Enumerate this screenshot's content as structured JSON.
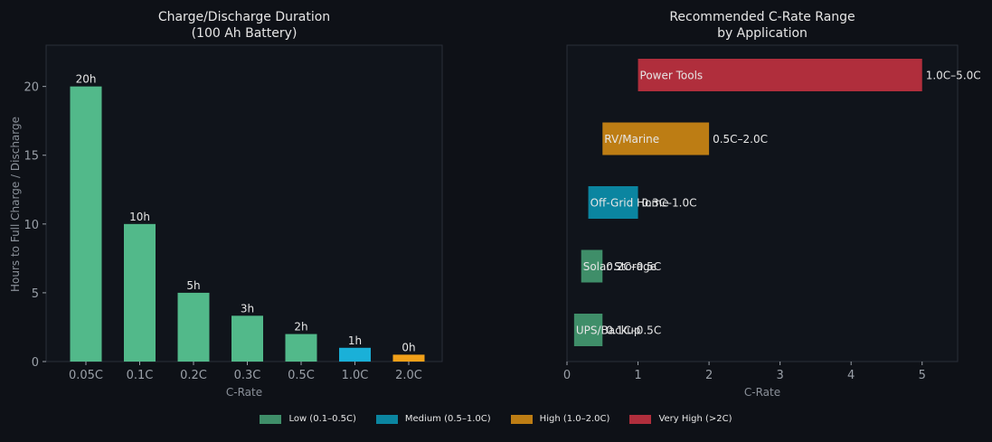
{
  "chart_data": [
    {
      "type": "bar",
      "title": "Charge/Discharge Duration\n(100 Ah Battery)",
      "xlabel": "C-Rate",
      "ylabel": "Hours to Full Charge / Discharge",
      "categories": [
        "0.05C",
        "0.1C",
        "0.2C",
        "0.3C",
        "0.5C",
        "1.0C",
        "2.0C"
      ],
      "values": [
        20,
        10,
        5,
        3.33,
        2,
        1,
        0.5
      ],
      "data_labels": [
        "20h",
        "10h",
        "5h",
        "3h",
        "2h",
        "1h",
        "0h"
      ],
      "bar_colors": [
        "#52b98a",
        "#52b98a",
        "#52b98a",
        "#52b98a",
        "#52b98a",
        "#1ab0d8",
        "#f1a019"
      ],
      "ylim": [
        0,
        23
      ],
      "yticks": [
        0,
        5,
        10,
        15,
        20
      ],
      "grid": false
    },
    {
      "type": "bar",
      "orientation": "horizontal",
      "title": "Recommended C-Rate Range\nby Application",
      "xlabel": "C-Rate",
      "xlim": [
        0,
        5.5
      ],
      "xticks": [
        0,
        1,
        2,
        3,
        4,
        5
      ],
      "categories": [
        "UPS/Backup",
        "Solar Storage",
        "Off-Grid Home",
        "RV/Marine",
        "Power Tools"
      ],
      "ranges": [
        [
          0.1,
          0.5
        ],
        [
          0.2,
          0.5
        ],
        [
          0.3,
          1.0
        ],
        [
          0.5,
          2.0
        ],
        [
          1.0,
          5.0
        ]
      ],
      "range_labels": [
        "0.1C–0.5C",
        "0.2C–0.5C",
        "0.3C–1.0C",
        "0.5C–2.0C",
        "1.0C–5.0C"
      ],
      "colors": [
        "#3f8e69",
        "#3f8e69",
        "#0b85a0",
        "#bd7d14",
        "#b02e3c"
      ],
      "grid": false
    }
  ],
  "legend": {
    "placement": "bottom-center",
    "items": [
      {
        "label": "Low (0.1–0.5C)",
        "color": "#3f8e69"
      },
      {
        "label": "Medium (0.5–1.0C)",
        "color": "#0b85a0"
      },
      {
        "label": "High (1.0–2.0C)",
        "color": "#bd7d14"
      },
      {
        "label": "Very High (>2C)",
        "color": "#b02e3c"
      }
    ]
  },
  "colors": {
    "background": "#0e1117",
    "axes_face": "#10141b",
    "spine": "#2a2f38",
    "tick_text": "#9aa0a8",
    "title_text": "#e6e6e6",
    "label_text": "#e6e6e6"
  }
}
